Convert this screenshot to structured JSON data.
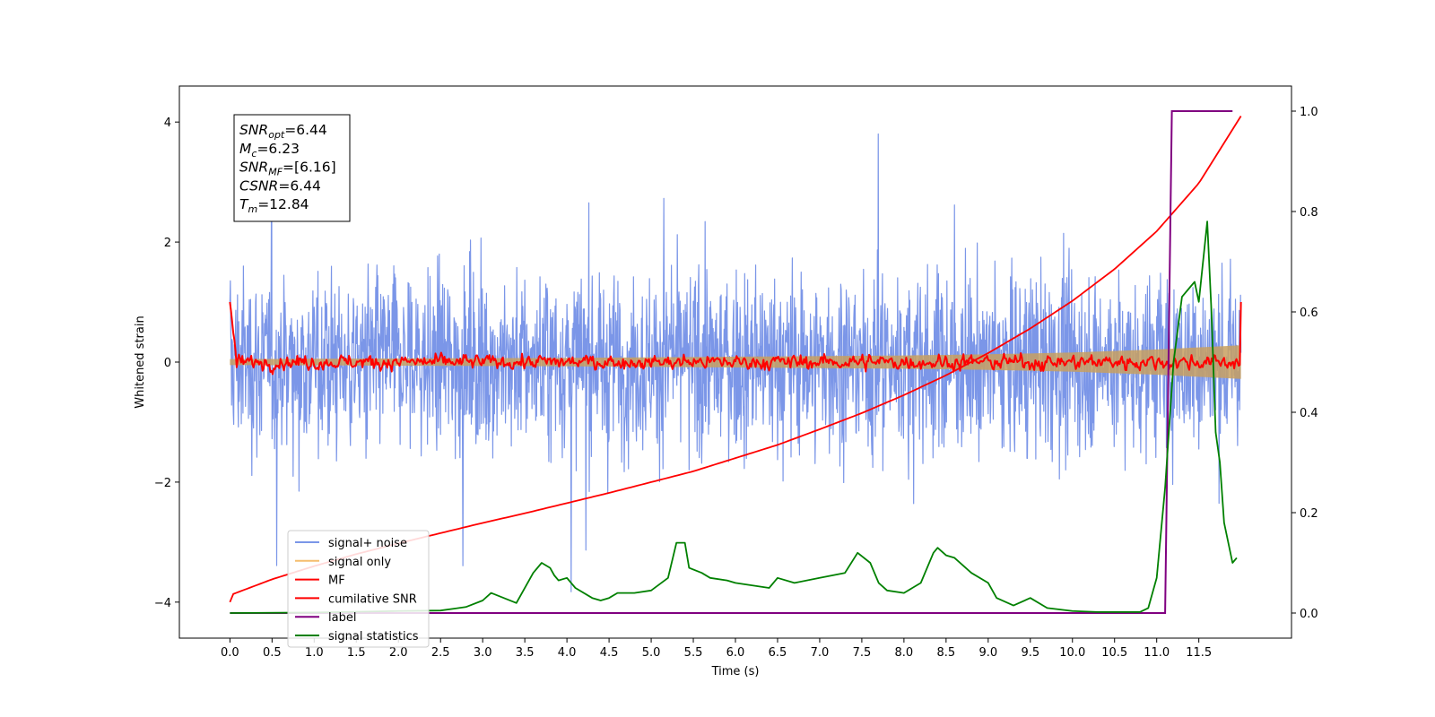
{
  "chart_data": {
    "type": "line",
    "xlabel": "Time (s)",
    "ylabel": "Whitened strain",
    "xlim": [
      -0.6,
      12.6
    ],
    "ylim": [
      -4.6,
      4.6
    ],
    "ylim_right": [
      -0.05,
      1.05
    ],
    "x_ticks": [
      0.0,
      0.5,
      1.0,
      1.5,
      2.0,
      2.5,
      3.0,
      3.5,
      4.0,
      4.5,
      5.0,
      5.5,
      6.0,
      6.5,
      7.0,
      7.5,
      8.0,
      8.5,
      9.0,
      9.5,
      10.0,
      10.5,
      11.0,
      11.5
    ],
    "x_tick_labels": [
      "0.0",
      "0.5",
      "1.0",
      "1.5",
      "2.0",
      "2.5",
      "3.0",
      "3.5",
      "4.0",
      "4.5",
      "5.0",
      "5.5",
      "6.0",
      "6.5",
      "7.0",
      "7.5",
      "8.0",
      "8.5",
      "9.0",
      "9.5",
      "10.0",
      "10.5",
      "11.0",
      "11.5"
    ],
    "y_ticks": [
      -4,
      -2,
      0,
      2,
      4
    ],
    "y_tick_labels": [
      "−4",
      "−2",
      "0",
      "2",
      "4"
    ],
    "y_right_ticks": [
      0.0,
      0.2,
      0.4,
      0.6,
      0.8,
      1.0
    ],
    "y_right_tick_labels": [
      "0.0",
      "0.2",
      "0.4",
      "0.6",
      "0.8",
      "1.0"
    ],
    "grid": false,
    "legend_position": "bottom-left",
    "annotation": {
      "lines": [
        {
          "base": "SNR",
          "sub": "opt",
          "value": "=6.44"
        },
        {
          "base": "M",
          "sub": "c",
          "value": "=6.23"
        },
        {
          "base": "SNR",
          "sub": "MF",
          "value": "=[6.16]"
        },
        {
          "base": "CSNR",
          "sub": "",
          "value": "=6.44"
        },
        {
          "base": "T",
          "sub": "m",
          "value": "=12.84"
        }
      ]
    },
    "series": [
      {
        "name": "signal+ noise",
        "color": "#7b96e8",
        "axis": "left",
        "style": "noise",
        "x_range": [
          0.0,
          12.0
        ],
        "amplitude_range": [
          -4.1,
          4.15
        ]
      },
      {
        "name": "signal only",
        "color": "#f5bd6e",
        "axis": "left",
        "style": "band",
        "x": [
          0.0,
          2.0,
          4.0,
          6.0,
          8.0,
          9.0,
          10.0,
          11.0,
          12.0
        ],
        "envelope": [
          0.05,
          0.06,
          0.07,
          0.09,
          0.11,
          0.13,
          0.16,
          0.21,
          0.28
        ]
      },
      {
        "name": "MF",
        "color": "#ff0000",
        "axis": "left",
        "style": "noise",
        "x_range": [
          0.0,
          12.0
        ],
        "amplitude_range": [
          -0.3,
          0.4
        ],
        "start_value": 1.0,
        "end_value": 1.0
      },
      {
        "name": "cumilative SNR",
        "color": "#ff0000",
        "axis": "left",
        "x": [
          0.0,
          0.01,
          0.5,
          1.0,
          1.5,
          2.0,
          2.5,
          3.0,
          3.5,
          4.0,
          4.5,
          5.0,
          5.5,
          6.0,
          6.5,
          7.0,
          7.5,
          8.0,
          8.5,
          9.0,
          9.5,
          10.0,
          10.5,
          11.0,
          11.5,
          12.0
        ],
        "y": [
          -4.0,
          -3.88,
          -3.62,
          -3.4,
          -3.2,
          -3.02,
          -2.85,
          -2.68,
          -2.52,
          -2.35,
          -2.18,
          -2.0,
          -1.82,
          -1.6,
          -1.38,
          -1.12,
          -0.85,
          -0.55,
          -0.22,
          0.15,
          0.56,
          1.02,
          1.55,
          2.18,
          2.98,
          4.1
        ]
      },
      {
        "name": "label",
        "color": "#800080",
        "axis": "right",
        "x": [
          0.0,
          11.1,
          11.18,
          11.9
        ],
        "y": [
          0.0,
          0.0,
          1.0,
          1.0
        ]
      },
      {
        "name": "signal statistics",
        "color": "#008000",
        "axis": "right",
        "x": [
          0.0,
          1.0,
          2.0,
          2.5,
          2.8,
          3.0,
          3.1,
          3.4,
          3.6,
          3.7,
          3.8,
          3.85,
          3.9,
          4.0,
          4.1,
          4.3,
          4.4,
          4.5,
          4.6,
          4.8,
          5.0,
          5.2,
          5.3,
          5.4,
          5.45,
          5.6,
          5.7,
          5.9,
          6.0,
          6.4,
          6.5,
          6.7,
          7.0,
          7.3,
          7.45,
          7.6,
          7.7,
          7.8,
          8.0,
          8.2,
          8.35,
          8.4,
          8.5,
          8.6,
          8.8,
          9.0,
          9.1,
          9.3,
          9.5,
          9.7,
          10.0,
          10.3,
          10.8,
          10.9,
          11.0,
          11.1,
          11.2,
          11.3,
          11.4,
          11.45,
          11.5,
          11.6,
          11.65,
          11.7,
          11.75,
          11.8,
          11.9,
          11.95
        ],
        "y": [
          0.0,
          0.001,
          0.004,
          0.005,
          0.012,
          0.025,
          0.04,
          0.02,
          0.08,
          0.1,
          0.09,
          0.075,
          0.065,
          0.07,
          0.05,
          0.03,
          0.025,
          0.03,
          0.04,
          0.04,
          0.045,
          0.07,
          0.14,
          0.14,
          0.09,
          0.08,
          0.07,
          0.065,
          0.06,
          0.05,
          0.07,
          0.06,
          0.07,
          0.08,
          0.12,
          0.1,
          0.06,
          0.045,
          0.04,
          0.06,
          0.12,
          0.13,
          0.115,
          0.11,
          0.08,
          0.06,
          0.03,
          0.015,
          0.03,
          0.01,
          0.004,
          0.002,
          0.002,
          0.01,
          0.07,
          0.25,
          0.5,
          0.63,
          0.65,
          0.66,
          0.62,
          0.78,
          0.6,
          0.36,
          0.3,
          0.18,
          0.1,
          0.11
        ]
      }
    ]
  }
}
